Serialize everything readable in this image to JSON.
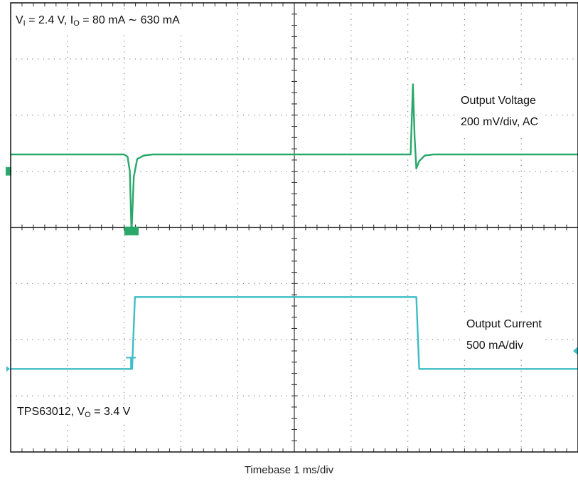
{
  "chart_data": {
    "type": "line",
    "title": "",
    "xlabel": "Timebase 1 ms/div",
    "ylabel": "",
    "grid": true,
    "x_divisions": 10,
    "y_divisions": 8,
    "x_range_div": [
      0,
      10
    ],
    "y_range_div": [
      0,
      8
    ],
    "annotations": {
      "conditions_top_left": {
        "vi_main": "V",
        "vi_sub": "I",
        "vi_value": " = 2.4 V, ",
        "io_main": "I",
        "io_sub": "O",
        "io_value": " = 80 mA ∼ 630 mA"
      },
      "voltage_label": {
        "line1": "Output Voltage",
        "line2": "200 mV/div, AC"
      },
      "current_label": {
        "line1": "Output Current",
        "line2": "500 mA/div"
      },
      "device_bottom_left": {
        "device": "TPS63012, ",
        "vo_main": "V",
        "vo_sub": "O",
        "vo_value": " = 3.4 V"
      }
    },
    "series": [
      {
        "name": "Output Voltage",
        "color": "#2aa86a",
        "scale": "200 mV/div, AC",
        "points": [
          [
            0,
            5.3
          ],
          [
            2.0,
            5.3
          ],
          [
            2.06,
            5.26
          ],
          [
            2.1,
            5.0
          ],
          [
            2.13,
            3.9
          ],
          [
            2.17,
            4.9
          ],
          [
            2.23,
            5.22
          ],
          [
            2.35,
            5.28
          ],
          [
            2.5,
            5.3
          ],
          [
            7.05,
            5.3
          ],
          [
            7.09,
            6.55
          ],
          [
            7.12,
            5.6
          ],
          [
            7.15,
            5.05
          ],
          [
            7.2,
            5.18
          ],
          [
            7.3,
            5.28
          ],
          [
            7.45,
            5.3
          ],
          [
            10,
            5.3
          ]
        ]
      },
      {
        "name": "Output Current",
        "color": "#3dbdc6",
        "scale": "500 mA/div",
        "points": [
          [
            0,
            1.48
          ],
          [
            2.14,
            1.48
          ],
          [
            2.19,
            2.76
          ],
          [
            7.15,
            2.76
          ],
          [
            7.2,
            1.48
          ],
          [
            10,
            1.48
          ]
        ]
      }
    ],
    "markers": [
      {
        "kind": "voltage-ground",
        "color": "#2aa86a"
      },
      {
        "kind": "current-ground",
        "color": "#3dbdc6"
      },
      {
        "kind": "trigger-position",
        "color": "#2aa86a"
      },
      {
        "kind": "trigger-level",
        "color": "#3dbdc6"
      }
    ]
  }
}
